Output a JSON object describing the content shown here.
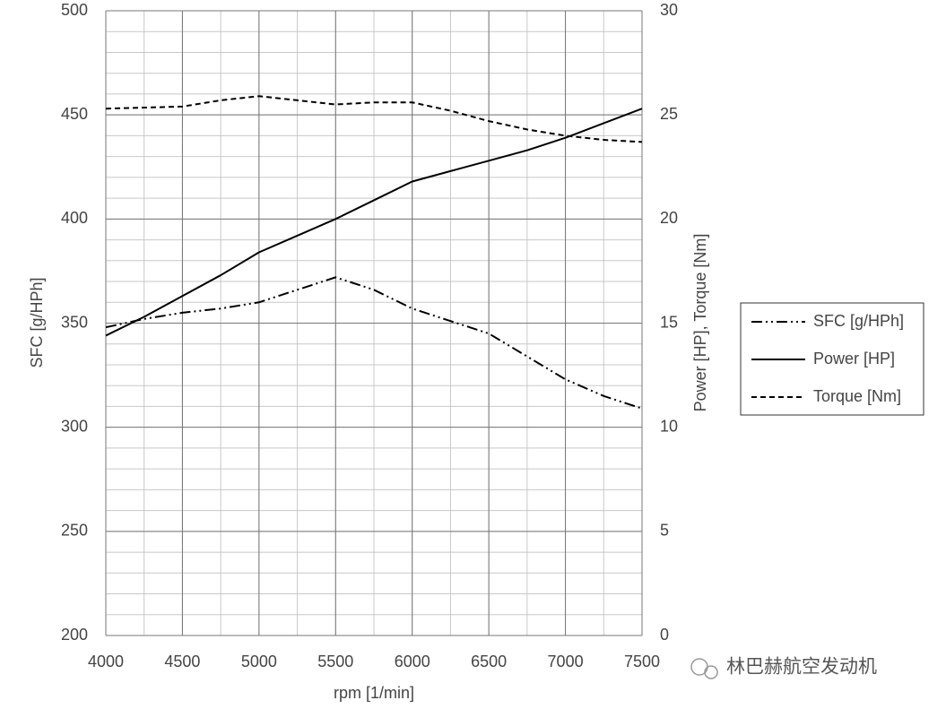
{
  "chart_data": {
    "type": "line",
    "x_label": "rpm [1/min]",
    "y_label": "SFC [g/HPh]",
    "y2_label": "Power [HP], Torque [Nm]",
    "x": [
      4000,
      4250,
      4500,
      4750,
      5000,
      5250,
      5500,
      5750,
      6000,
      6250,
      6500,
      6750,
      7000,
      7250,
      7500
    ],
    "series": [
      {
        "name": "SFC [g/HPh]",
        "color": "#000000",
        "dash": "dashdotdot",
        "axis": "y",
        "values": [
          348,
          352,
          355,
          357,
          360,
          366,
          372,
          366,
          357,
          351,
          345,
          334,
          323,
          315,
          309
        ]
      },
      {
        "name": "Power [HP]",
        "color": "#000000",
        "dash": "solid",
        "axis": "y2",
        "values": [
          14.4,
          15.3,
          16.3,
          17.3,
          18.4,
          19.2,
          20.0,
          20.9,
          21.8,
          22.3,
          22.8,
          23.3,
          23.9,
          24.6,
          25.3
        ]
      },
      {
        "name": "Torque [Nm]",
        "color": "#000000",
        "dash": "dashed",
        "axis": "y2",
        "values": [
          25.3,
          25.35,
          25.4,
          25.7,
          25.9,
          25.7,
          25.5,
          25.6,
          25.6,
          25.2,
          24.7,
          24.3,
          24.0,
          23.8,
          23.7
        ]
      }
    ],
    "xlim": [
      4000,
      7500
    ],
    "xticks": [
      4000,
      4500,
      5000,
      5500,
      6000,
      6500,
      7000,
      7500
    ],
    "ylim": [
      200,
      500
    ],
    "yticks": [
      200,
      250,
      300,
      350,
      400,
      450,
      500
    ],
    "y2lim": [
      0,
      30
    ],
    "y2ticks": [
      0,
      5,
      10,
      15,
      20,
      25,
      30
    ],
    "grid": true,
    "minor_grid": {
      "x": 250,
      "y": 10
    },
    "legend": "right",
    "watermark": "林巴赫航空发动机"
  }
}
